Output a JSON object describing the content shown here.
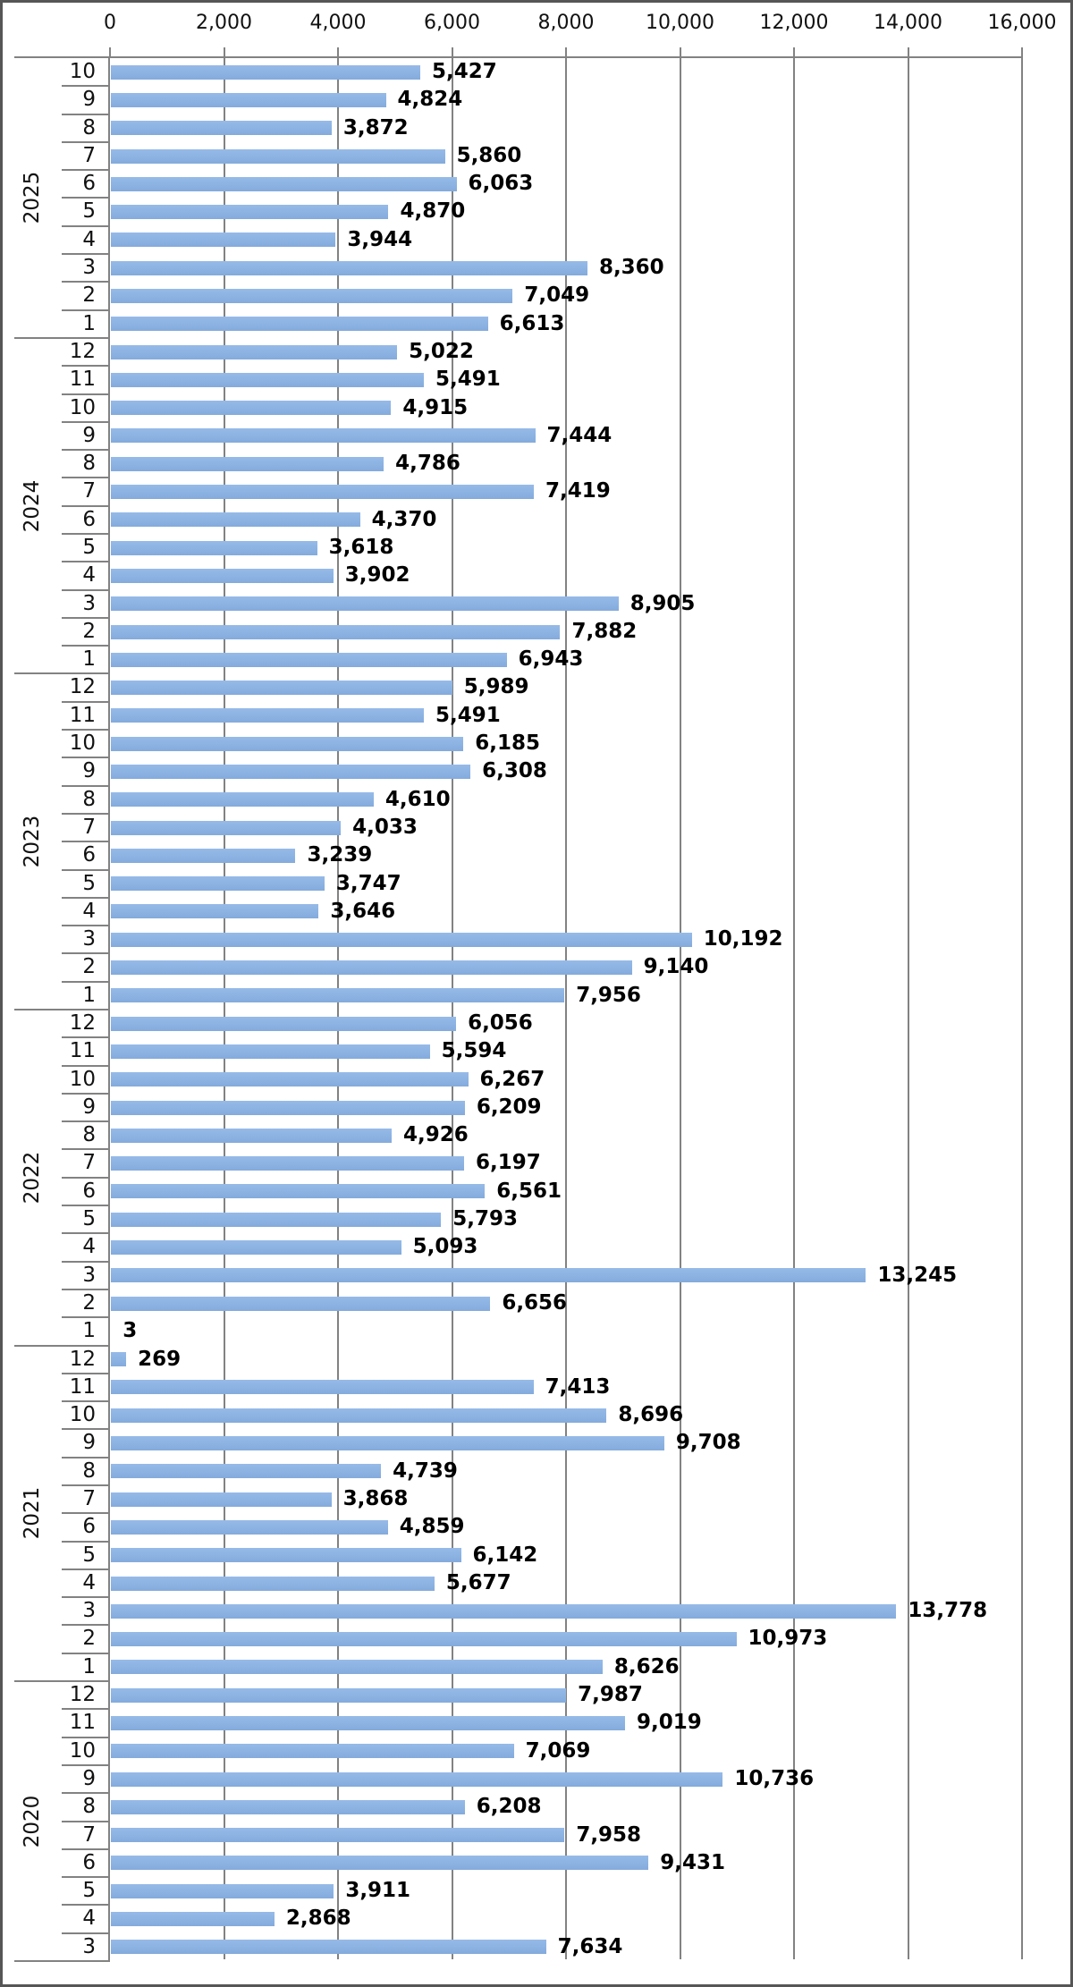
{
  "chart_data": {
    "type": "bar",
    "orientation": "horizontal",
    "title": "",
    "legend": "none",
    "grid": "vertical-on",
    "data_labels": "outside-end",
    "bar_color": "#8DB4E3",
    "gridline_color": "#828282",
    "value_axis": {
      "position": "top",
      "min": 0,
      "max": 16000,
      "step": 2000,
      "tick_labels": [
        "0",
        "2,000",
        "4,000",
        "6,000",
        "8,000",
        "10,000",
        "12,000",
        "14,000",
        "16,000"
      ]
    },
    "category_axis": {
      "levels": [
        "year",
        "month"
      ]
    },
    "groups": [
      {
        "year": "2025",
        "rows": [
          {
            "month": "10",
            "value": 5427
          },
          {
            "month": "9",
            "value": 4824
          },
          {
            "month": "8",
            "value": 3872
          },
          {
            "month": "7",
            "value": 5860
          },
          {
            "month": "6",
            "value": 6063
          },
          {
            "month": "5",
            "value": 4870
          },
          {
            "month": "4",
            "value": 3944
          },
          {
            "month": "3",
            "value": 8360
          },
          {
            "month": "2",
            "value": 7049
          },
          {
            "month": "1",
            "value": 6613
          }
        ]
      },
      {
        "year": "2024",
        "rows": [
          {
            "month": "12",
            "value": 5022
          },
          {
            "month": "11",
            "value": 5491
          },
          {
            "month": "10",
            "value": 4915
          },
          {
            "month": "9",
            "value": 7444
          },
          {
            "month": "8",
            "value": 4786
          },
          {
            "month": "7",
            "value": 7419
          },
          {
            "month": "6",
            "value": 4370
          },
          {
            "month": "5",
            "value": 3618
          },
          {
            "month": "4",
            "value": 3902
          },
          {
            "month": "3",
            "value": 8905
          },
          {
            "month": "2",
            "value": 7882
          },
          {
            "month": "1",
            "value": 6943
          }
        ]
      },
      {
        "year": "2023",
        "rows": [
          {
            "month": "12",
            "value": 5989
          },
          {
            "month": "11",
            "value": 5491
          },
          {
            "month": "10",
            "value": 6185
          },
          {
            "month": "9",
            "value": 6308
          },
          {
            "month": "8",
            "value": 4610
          },
          {
            "month": "7",
            "value": 4033
          },
          {
            "month": "6",
            "value": 3239
          },
          {
            "month": "5",
            "value": 3747
          },
          {
            "month": "4",
            "value": 3646
          },
          {
            "month": "3",
            "value": 10192
          },
          {
            "month": "2",
            "value": 9140
          },
          {
            "month": "1",
            "value": 7956
          }
        ]
      },
      {
        "year": "2022",
        "rows": [
          {
            "month": "12",
            "value": 6056
          },
          {
            "month": "11",
            "value": 5594
          },
          {
            "month": "10",
            "value": 6267
          },
          {
            "month": "9",
            "value": 6209
          },
          {
            "month": "8",
            "value": 4926
          },
          {
            "month": "7",
            "value": 6197
          },
          {
            "month": "6",
            "value": 6561
          },
          {
            "month": "5",
            "value": 5793
          },
          {
            "month": "4",
            "value": 5093
          },
          {
            "month": "3",
            "value": 13245
          },
          {
            "month": "2",
            "value": 6656
          },
          {
            "month": "1",
            "value": 3
          }
        ]
      },
      {
        "year": "2021",
        "rows": [
          {
            "month": "12",
            "value": 269
          },
          {
            "month": "11",
            "value": 7413
          },
          {
            "month": "10",
            "value": 8696
          },
          {
            "month": "9",
            "value": 9708
          },
          {
            "month": "8",
            "value": 4739
          },
          {
            "month": "7",
            "value": 3868
          },
          {
            "month": "6",
            "value": 4859
          },
          {
            "month": "5",
            "value": 6142
          },
          {
            "month": "4",
            "value": 5677
          },
          {
            "month": "3",
            "value": 13778
          },
          {
            "month": "2",
            "value": 10973
          },
          {
            "month": "1",
            "value": 8626
          }
        ]
      },
      {
        "year": "2020",
        "rows": [
          {
            "month": "12",
            "value": 7987
          },
          {
            "month": "11",
            "value": 9019
          },
          {
            "month": "10",
            "value": 7069
          },
          {
            "month": "9",
            "value": 10736
          },
          {
            "month": "8",
            "value": 6208
          },
          {
            "month": "7",
            "value": 7958
          },
          {
            "month": "6",
            "value": 9431
          },
          {
            "month": "5",
            "value": 3911
          },
          {
            "month": "4",
            "value": 2868
          },
          {
            "month": "3",
            "value": 7634
          }
        ]
      }
    ]
  }
}
